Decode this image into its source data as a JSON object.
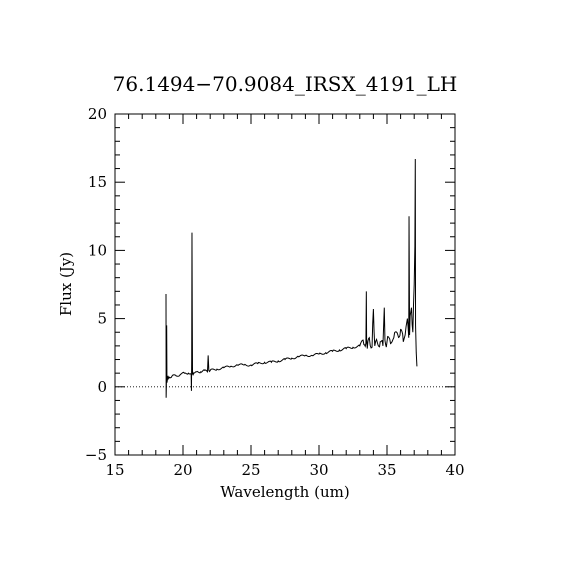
{
  "chart_data": {
    "type": "line",
    "title": "76.1494−70.9084_IRSX_4191_LH",
    "xlabel": "Wavelength (um)",
    "ylabel": "Flux (Jy)",
    "xlim": [
      15,
      40
    ],
    "ylim": [
      -5,
      20
    ],
    "x_ticks": [
      15,
      20,
      25,
      30,
      35,
      40
    ],
    "y_ticks": [
      -5,
      0,
      5,
      10,
      15,
      20
    ],
    "x_tick_labels": [
      "15",
      "20",
      "25",
      "30",
      "35",
      "40"
    ],
    "y_tick_labels": [
      "−5",
      "0",
      "5",
      "10",
      "15",
      "20"
    ],
    "x_minor_step": 1,
    "y_minor_step": 1,
    "zero_line": {
      "y": 0,
      "style": "dotted"
    },
    "grid": false,
    "legend": "none",
    "line_color": "#000000",
    "series": [
      {
        "x": [
          18.75,
          18.76,
          18.78,
          18.8,
          18.82,
          18.85,
          18.9,
          18.95,
          19.0,
          19.2,
          19.5,
          19.8,
          20.1,
          20.4,
          20.6,
          20.62,
          20.64,
          20.66,
          20.68,
          20.7,
          20.72,
          20.75,
          20.8,
          21.0,
          21.3,
          21.6,
          21.8,
          21.85,
          21.9,
          22.0,
          22.5,
          23.0,
          23.5,
          24.0,
          24.5,
          25.0,
          25.5,
          26.0,
          26.5,
          27.0,
          27.5,
          28.0,
          28.5,
          29.0,
          29.5,
          30.0,
          30.5,
          31.0,
          31.5,
          32.0,
          32.5,
          33.0,
          33.3,
          33.45,
          33.48,
          33.5,
          33.55,
          33.7,
          33.9,
          34.0,
          34.1,
          34.3,
          34.5,
          34.7,
          34.8,
          34.85,
          34.9,
          35.0,
          35.2,
          35.5,
          35.8,
          36.0,
          36.2,
          36.4,
          36.5,
          36.6,
          36.62,
          36.66,
          36.7,
          36.8,
          36.9,
          37.0,
          37.05,
          37.08,
          37.1,
          37.15,
          37.2
        ],
        "y": [
          6.8,
          -0.8,
          0.3,
          4.5,
          0.3,
          0.5,
          0.8,
          0.6,
          0.7,
          0.8,
          0.8,
          0.9,
          1.0,
          1.0,
          0.9,
          -0.3,
          2.0,
          11.3,
          5.5,
          0.9,
          1.1,
          0.9,
          1.0,
          1.1,
          1.1,
          1.2,
          1.1,
          2.3,
          1.2,
          1.2,
          1.3,
          1.4,
          1.5,
          1.6,
          1.6,
          1.6,
          1.7,
          1.8,
          1.8,
          1.9,
          2.0,
          2.1,
          2.2,
          2.3,
          2.3,
          2.4,
          2.5,
          2.6,
          2.7,
          2.8,
          2.9,
          3.0,
          3.1,
          3.2,
          7.0,
          3.5,
          2.8,
          3.6,
          2.9,
          5.7,
          3.0,
          3.2,
          3.3,
          3.0,
          5.8,
          3.4,
          3.1,
          3.3,
          3.5,
          3.6,
          3.8,
          4.2,
          3.3,
          4.4,
          5.0,
          3.6,
          12.5,
          3.8,
          5.2,
          5.8,
          4.0,
          7.5,
          10.3,
          16.7,
          4.5,
          2.5,
          1.5
        ]
      }
    ]
  }
}
